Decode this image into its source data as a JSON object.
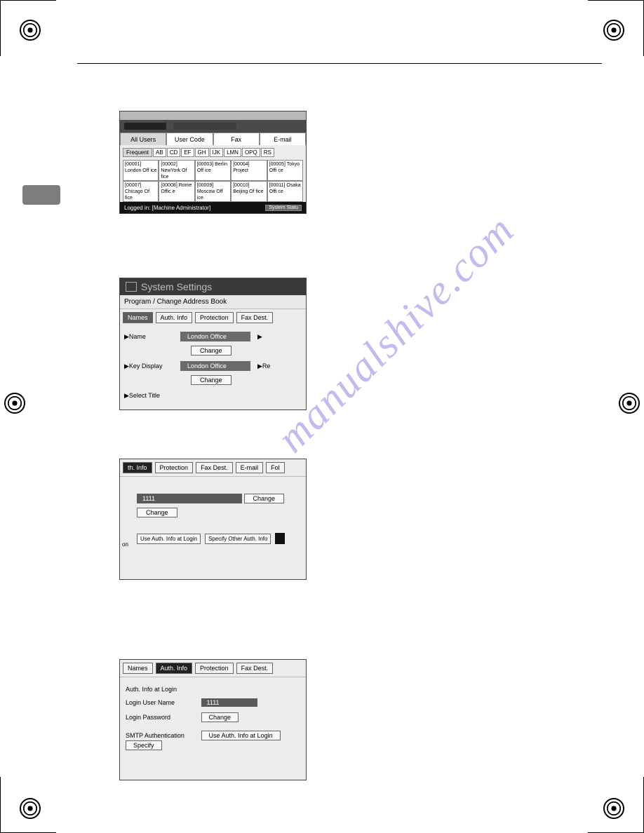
{
  "watermark": "manualshive.com",
  "panel1": {
    "tabs": [
      "All Users",
      "User Code",
      "Fax",
      "E-mail"
    ],
    "alpha": [
      "Frequent",
      "AB",
      "CD",
      "EF",
      "GH",
      "IJK",
      "LMN",
      "OPQ",
      "RS"
    ],
    "row1": [
      {
        "id": "[00001]",
        "name": "London Off ice"
      },
      {
        "id": "[00002]",
        "name": "NewYork Of fice"
      },
      {
        "id": "[00003]",
        "name": "Berlin Off ice"
      },
      {
        "id": "[00004]",
        "name": "Project"
      },
      {
        "id": "[00005]",
        "name": "Tokyo Offi ce"
      }
    ],
    "row2": [
      {
        "id": "[00007]",
        "name": "Chicago Of fice"
      },
      {
        "id": "[00008]",
        "name": "Rome Offic e"
      },
      {
        "id": "[00009]",
        "name": "Moscow Off ice"
      },
      {
        "id": "[00010]",
        "name": "Beijing Of fice"
      },
      {
        "id": "[00011]",
        "name": "Osaka Offi ce"
      }
    ],
    "footer_left": "Logged in: [Machine Administrator]",
    "footer_btn": "System Statu"
  },
  "panel2": {
    "title": "System Settings",
    "subtitle": "Program / Change Address Book",
    "tabs": [
      "Names",
      "Auth. Info",
      "Protection",
      "Fax Dest."
    ],
    "name_label": "▶Name",
    "name_value": "London Office",
    "key_label": "▶Key Display",
    "key_value": "London Office",
    "select_title": "▶Select Title",
    "change": "Change",
    "arrow": "▶",
    "re": "▶Re"
  },
  "panel3": {
    "tabs": [
      "th. Info",
      "Protection",
      "Fax Dest.",
      "E-mail",
      "Fol"
    ],
    "field_value": "1111",
    "change": "Change",
    "opts": [
      "Use Auth. Info at Login",
      "Specify Other Auth. Info"
    ],
    "on": "on"
  },
  "panel4": {
    "tabs": [
      "Names",
      "Auth. Info",
      "Protection",
      "Fax Dest."
    ],
    "heading": "Auth. Info at Login",
    "login_user_label": "Login User Name",
    "login_user_value": "1111",
    "login_pass_label": "Login Password",
    "change": "Change",
    "smtp_label": "SMTP Authentication",
    "smtp_btn1": "Use Auth. Info at Login",
    "smtp_btn2": "Specify"
  }
}
